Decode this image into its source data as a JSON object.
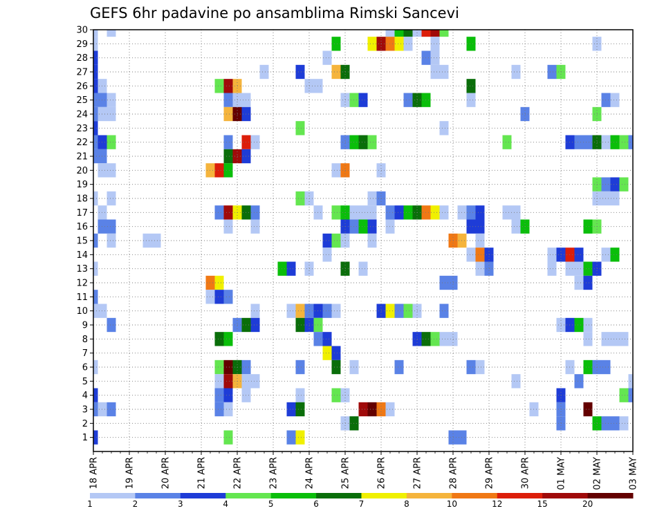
{
  "chart_data": {
    "type": "heatmap",
    "title": "GEFS 6hr padavine po ansamblima Rimski Sancevi",
    "xlabel": "",
    "ylabel": "",
    "x_tick_labels": [
      "18 APR",
      "19 APR",
      "20 APR",
      "21 APR",
      "22 APR",
      "23 APR",
      "24 APR",
      "25 APR",
      "26 APR",
      "27 APR",
      "28 APR",
      "29 APR",
      "30 APR",
      "01 MAY",
      "02 MAY",
      "03 MAY"
    ],
    "y_tick_labels": [
      "1",
      "2",
      "3",
      "4",
      "5",
      "6",
      "7",
      "8",
      "9",
      "10",
      "11",
      "12",
      "13",
      "14",
      "15",
      "16",
      "17",
      "18",
      "19",
      "20",
      "21",
      "22",
      "23",
      "24",
      "25",
      "26",
      "27",
      "28",
      "29",
      "30"
    ],
    "time_steps": 61,
    "members": 31,
    "grid": "dotted",
    "legend": {
      "placement": "bottom",
      "labels": [
        "1",
        "2",
        "3",
        "4",
        "5",
        "6",
        "7",
        "8",
        "10",
        "12",
        "15",
        "20"
      ],
      "colors": [
        "#b4c8f5",
        "#5a82e6",
        "#1e3cd7",
        "#64e650",
        "#0abe0a",
        "#0a6e0a",
        "#f0f000",
        "#f5b43c",
        "#f07814",
        "#dc1e0a",
        "#a00a0a",
        "#640000"
      ]
    },
    "color_levels": {
      "1": "#b4c8f5",
      "2": "#5a82e6",
      "3": "#1e3cd7",
      "4": "#64e650",
      "5": "#0abe0a",
      "6": "#0a6e0a",
      "7": "#f0f000",
      "8": "#f5b43c",
      "10": "#f07814",
      "12": "#dc1e0a",
      "15": "#a00a0a",
      "20": "#640000"
    },
    "cells": [
      [
        0,
        30,
        1
      ],
      [
        2,
        30,
        1
      ],
      [
        33,
        30,
        1
      ],
      [
        34,
        30,
        5
      ],
      [
        35,
        30,
        6
      ],
      [
        36,
        30,
        1
      ],
      [
        37,
        30,
        12
      ],
      [
        38,
        30,
        15
      ],
      [
        39,
        30,
        4
      ],
      [
        0,
        29,
        1
      ],
      [
        27,
        29,
        5
      ],
      [
        31,
        29,
        7
      ],
      [
        32,
        29,
        15
      ],
      [
        33,
        29,
        10
      ],
      [
        34,
        29,
        7
      ],
      [
        35,
        29,
        1
      ],
      [
        38,
        29,
        1
      ],
      [
        42,
        29,
        5
      ],
      [
        56,
        29,
        1
      ],
      [
        0,
        28,
        3
      ],
      [
        26,
        28,
        1
      ],
      [
        37,
        28,
        2
      ],
      [
        38,
        28,
        1
      ],
      [
        0,
        27,
        3
      ],
      [
        19,
        27,
        1
      ],
      [
        23,
        27,
        3
      ],
      [
        27,
        27,
        8
      ],
      [
        28,
        27,
        6
      ],
      [
        38,
        27,
        1
      ],
      [
        39,
        27,
        1
      ],
      [
        47,
        27,
        1
      ],
      [
        51,
        27,
        2
      ],
      [
        52,
        27,
        4
      ],
      [
        0,
        26,
        3
      ],
      [
        1,
        26,
        1
      ],
      [
        14,
        26,
        4
      ],
      [
        15,
        26,
        15
      ],
      [
        16,
        26,
        8
      ],
      [
        24,
        26,
        1
      ],
      [
        25,
        26,
        1
      ],
      [
        42,
        26,
        6
      ],
      [
        0,
        25,
        2
      ],
      [
        1,
        25,
        2
      ],
      [
        2,
        25,
        1
      ],
      [
        15,
        25,
        2
      ],
      [
        16,
        25,
        1
      ],
      [
        17,
        25,
        1
      ],
      [
        28,
        25,
        1
      ],
      [
        29,
        25,
        4
      ],
      [
        30,
        25,
        3
      ],
      [
        35,
        25,
        2
      ],
      [
        36,
        25,
        6
      ],
      [
        37,
        25,
        5
      ],
      [
        42,
        25,
        1
      ],
      [
        57,
        25,
        2
      ],
      [
        58,
        25,
        1
      ],
      [
        0,
        24,
        2
      ],
      [
        1,
        24,
        1
      ],
      [
        2,
        24,
        1
      ],
      [
        15,
        24,
        8
      ],
      [
        16,
        24,
        20
      ],
      [
        17,
        24,
        3
      ],
      [
        48,
        24,
        2
      ],
      [
        56,
        24,
        4
      ],
      [
        0,
        23,
        3
      ],
      [
        23,
        23,
        4
      ],
      [
        39,
        23,
        1
      ],
      [
        0,
        22,
        2
      ],
      [
        1,
        22,
        3
      ],
      [
        2,
        22,
        4
      ],
      [
        15,
        22,
        2
      ],
      [
        17,
        22,
        12
      ],
      [
        18,
        22,
        1
      ],
      [
        28,
        22,
        2
      ],
      [
        29,
        22,
        5
      ],
      [
        30,
        22,
        6
      ],
      [
        31,
        22,
        4
      ],
      [
        46,
        22,
        4
      ],
      [
        53,
        22,
        3
      ],
      [
        54,
        22,
        2
      ],
      [
        55,
        22,
        2
      ],
      [
        56,
        22,
        6
      ],
      [
        57,
        22,
        1
      ],
      [
        58,
        22,
        5
      ],
      [
        59,
        22,
        4
      ],
      [
        60,
        22,
        2
      ],
      [
        0,
        21,
        2
      ],
      [
        1,
        21,
        2
      ],
      [
        15,
        21,
        6
      ],
      [
        16,
        21,
        15
      ],
      [
        17,
        21,
        3
      ],
      [
        1,
        20,
        1
      ],
      [
        2,
        20,
        1
      ],
      [
        13,
        20,
        8
      ],
      [
        14,
        20,
        12
      ],
      [
        15,
        20,
        5
      ],
      [
        27,
        20,
        1
      ],
      [
        28,
        20,
        10
      ],
      [
        32,
        20,
        1
      ],
      [
        56,
        19,
        4
      ],
      [
        57,
        19,
        2
      ],
      [
        58,
        19,
        3
      ],
      [
        59,
        19,
        4
      ],
      [
        0,
        18,
        1
      ],
      [
        2,
        18,
        1
      ],
      [
        23,
        18,
        4
      ],
      [
        24,
        18,
        1
      ],
      [
        31,
        18,
        1
      ],
      [
        32,
        18,
        2
      ],
      [
        56,
        18,
        1
      ],
      [
        57,
        18,
        1
      ],
      [
        58,
        18,
        1
      ],
      [
        1,
        17,
        1
      ],
      [
        14,
        17,
        2
      ],
      [
        15,
        17,
        15
      ],
      [
        16,
        17,
        7
      ],
      [
        17,
        17,
        6
      ],
      [
        18,
        17,
        2
      ],
      [
        25,
        17,
        1
      ],
      [
        27,
        17,
        4
      ],
      [
        28,
        17,
        5
      ],
      [
        29,
        17,
        1
      ],
      [
        30,
        17,
        1
      ],
      [
        31,
        17,
        1
      ],
      [
        33,
        17,
        2
      ],
      [
        34,
        17,
        3
      ],
      [
        35,
        17,
        5
      ],
      [
        36,
        17,
        6
      ],
      [
        37,
        17,
        10
      ],
      [
        38,
        17,
        7
      ],
      [
        39,
        17,
        1
      ],
      [
        41,
        17,
        1
      ],
      [
        42,
        17,
        2
      ],
      [
        43,
        17,
        3
      ],
      [
        46,
        17,
        1
      ],
      [
        47,
        17,
        1
      ],
      [
        1,
        16,
        2
      ],
      [
        2,
        16,
        2
      ],
      [
        15,
        16,
        1
      ],
      [
        18,
        16,
        1
      ],
      [
        28,
        16,
        3
      ],
      [
        29,
        16,
        2
      ],
      [
        30,
        16,
        5
      ],
      [
        31,
        16,
        3
      ],
      [
        33,
        16,
        1
      ],
      [
        42,
        16,
        3
      ],
      [
        43,
        16,
        3
      ],
      [
        47,
        16,
        1
      ],
      [
        48,
        16,
        5
      ],
      [
        55,
        16,
        5
      ],
      [
        56,
        16,
        4
      ],
      [
        0,
        15,
        2
      ],
      [
        2,
        15,
        1
      ],
      [
        6,
        15,
        1
      ],
      [
        7,
        15,
        1
      ],
      [
        26,
        15,
        3
      ],
      [
        27,
        15,
        4
      ],
      [
        28,
        15,
        1
      ],
      [
        31,
        15,
        1
      ],
      [
        40,
        15,
        10
      ],
      [
        41,
        15,
        8
      ],
      [
        43,
        15,
        1
      ],
      [
        26,
        14,
        1
      ],
      [
        42,
        14,
        1
      ],
      [
        43,
        14,
        10
      ],
      [
        44,
        14,
        3
      ],
      [
        51,
        14,
        1
      ],
      [
        52,
        14,
        3
      ],
      [
        53,
        14,
        12
      ],
      [
        54,
        14,
        3
      ],
      [
        57,
        14,
        1
      ],
      [
        58,
        14,
        5
      ],
      [
        0,
        13,
        1
      ],
      [
        21,
        13,
        5
      ],
      [
        22,
        13,
        3
      ],
      [
        24,
        13,
        1
      ],
      [
        28,
        13,
        6
      ],
      [
        30,
        13,
        1
      ],
      [
        43,
        13,
        1
      ],
      [
        44,
        13,
        2
      ],
      [
        51,
        13,
        1
      ],
      [
        53,
        13,
        1
      ],
      [
        54,
        13,
        1
      ],
      [
        55,
        13,
        5
      ],
      [
        56,
        13,
        3
      ],
      [
        13,
        12,
        10
      ],
      [
        14,
        12,
        7
      ],
      [
        39,
        12,
        2
      ],
      [
        40,
        12,
        2
      ],
      [
        54,
        12,
        1
      ],
      [
        55,
        12,
        3
      ],
      [
        0,
        11,
        2
      ],
      [
        13,
        11,
        1
      ],
      [
        14,
        11,
        3
      ],
      [
        15,
        11,
        2
      ],
      [
        0,
        10,
        1
      ],
      [
        1,
        10,
        1
      ],
      [
        18,
        10,
        1
      ],
      [
        22,
        10,
        1
      ],
      [
        23,
        10,
        8
      ],
      [
        24,
        10,
        2
      ],
      [
        25,
        10,
        3
      ],
      [
        26,
        10,
        2
      ],
      [
        27,
        10,
        1
      ],
      [
        32,
        10,
        3
      ],
      [
        33,
        10,
        7
      ],
      [
        34,
        10,
        2
      ],
      [
        35,
        10,
        4
      ],
      [
        36,
        10,
        1
      ],
      [
        39,
        10,
        2
      ],
      [
        2,
        9,
        2
      ],
      [
        16,
        9,
        2
      ],
      [
        17,
        9,
        6
      ],
      [
        18,
        9,
        3
      ],
      [
        23,
        9,
        6
      ],
      [
        24,
        9,
        3
      ],
      [
        25,
        9,
        4
      ],
      [
        52,
        9,
        1
      ],
      [
        53,
        9,
        3
      ],
      [
        54,
        9,
        5
      ],
      [
        55,
        9,
        1
      ],
      [
        14,
        8,
        6
      ],
      [
        15,
        8,
        5
      ],
      [
        25,
        8,
        2
      ],
      [
        26,
        8,
        3
      ],
      [
        36,
        8,
        3
      ],
      [
        37,
        8,
        6
      ],
      [
        38,
        8,
        4
      ],
      [
        39,
        8,
        1
      ],
      [
        40,
        8,
        1
      ],
      [
        55,
        8,
        1
      ],
      [
        57,
        8,
        1
      ],
      [
        58,
        8,
        1
      ],
      [
        59,
        8,
        1
      ],
      [
        26,
        7,
        7
      ],
      [
        27,
        7,
        3
      ],
      [
        0,
        6,
        1
      ],
      [
        14,
        6,
        4
      ],
      [
        15,
        6,
        20
      ],
      [
        16,
        6,
        6
      ],
      [
        17,
        6,
        2
      ],
      [
        23,
        6,
        2
      ],
      [
        27,
        6,
        6
      ],
      [
        29,
        6,
        1
      ],
      [
        34,
        6,
        2
      ],
      [
        42,
        6,
        2
      ],
      [
        43,
        6,
        1
      ],
      [
        53,
        6,
        1
      ],
      [
        55,
        6,
        5
      ],
      [
        56,
        6,
        2
      ],
      [
        57,
        6,
        2
      ],
      [
        14,
        5,
        1
      ],
      [
        15,
        5,
        15
      ],
      [
        16,
        5,
        8
      ],
      [
        17,
        5,
        1
      ],
      [
        18,
        5,
        1
      ],
      [
        47,
        5,
        1
      ],
      [
        54,
        5,
        2
      ],
      [
        60,
        5,
        1
      ],
      [
        0,
        4,
        3
      ],
      [
        14,
        4,
        2
      ],
      [
        15,
        4,
        3
      ],
      [
        17,
        4,
        1
      ],
      [
        23,
        4,
        1
      ],
      [
        27,
        4,
        4
      ],
      [
        28,
        4,
        1
      ],
      [
        52,
        4,
        3
      ],
      [
        59,
        4,
        4
      ],
      [
        60,
        4,
        2
      ],
      [
        0,
        3,
        2
      ],
      [
        1,
        3,
        1
      ],
      [
        2,
        3,
        2
      ],
      [
        14,
        3,
        2
      ],
      [
        15,
        3,
        1
      ],
      [
        22,
        3,
        3
      ],
      [
        23,
        3,
        6
      ],
      [
        30,
        3,
        15
      ],
      [
        31,
        3,
        20
      ],
      [
        32,
        3,
        10
      ],
      [
        33,
        3,
        1
      ],
      [
        49,
        3,
        1
      ],
      [
        52,
        3,
        2
      ],
      [
        55,
        3,
        20
      ],
      [
        28,
        2,
        1
      ],
      [
        29,
        2,
        6
      ],
      [
        52,
        2,
        2
      ],
      [
        56,
        2,
        5
      ],
      [
        57,
        2,
        2
      ],
      [
        58,
        2,
        2
      ],
      [
        59,
        2,
        1
      ],
      [
        0,
        1,
        3
      ],
      [
        15,
        1,
        4
      ],
      [
        22,
        1,
        2
      ],
      [
        23,
        1,
        7
      ],
      [
        40,
        1,
        2
      ],
      [
        41,
        1,
        2
      ]
    ]
  }
}
